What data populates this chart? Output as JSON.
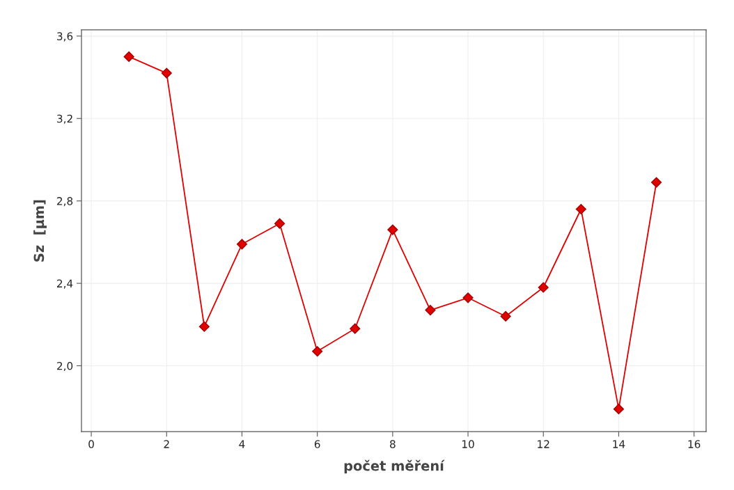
{
  "chart_data": {
    "type": "line",
    "xlabel": "počet měření",
    "ylabel": "Sz  [µm]",
    "x": [
      1,
      2,
      3,
      4,
      5,
      6,
      7,
      8,
      9,
      10,
      11,
      12,
      13,
      14,
      15
    ],
    "series": [
      {
        "color": "#e00000",
        "values": [
          3.5,
          3.42,
          2.19,
          2.59,
          2.69,
          2.07,
          2.18,
          2.66,
          2.27,
          2.33,
          2.24,
          2.38,
          2.76,
          1.79,
          2.89
        ]
      }
    ],
    "xlim": [
      -0.26,
      16.32
    ],
    "xticks": [
      0,
      2,
      4,
      6,
      8,
      10,
      12,
      14,
      16
    ],
    "ylim": [
      1.68,
      3.63
    ],
    "yticks": [
      {
        "value": 2.0,
        "label": "2,0"
      },
      {
        "value": 2.4,
        "label": "2,4"
      },
      {
        "value": 2.8,
        "label": "2,8"
      },
      {
        "value": 3.2,
        "label": "3,2"
      },
      {
        "value": 3.6,
        "label": "3,6"
      }
    ],
    "grid": true,
    "marker": "diamond",
    "line_style": "solid"
  }
}
